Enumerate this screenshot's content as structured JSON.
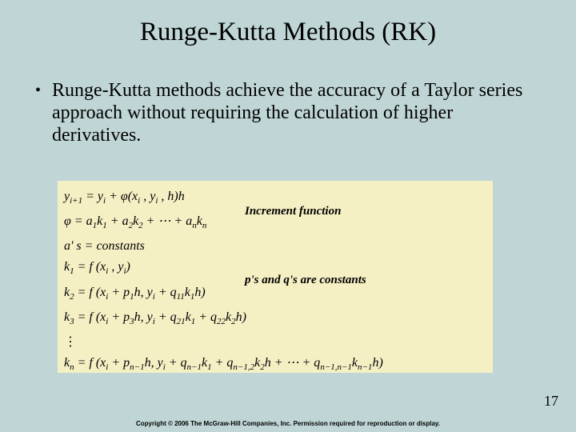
{
  "slide": {
    "background_color": "#c0d6d6",
    "title": "Runge-Kutta Methods (RK)",
    "bullet_text": "Runge-Kutta methods achieve the accuracy of a Taylor series approach without requiring the calculation of higher derivatives.",
    "page_number": "17",
    "copyright": "Copyright © 2006 The McGraw-Hill Companies, Inc. Permission required for reproduction or display."
  },
  "formula": {
    "background_color": "#f5f0c4",
    "annotation1": "Increment function",
    "annotation2": "p's and q's are constants",
    "equations": {
      "eq1_html": "y<sub>i+1</sub> = y<sub>i</sub> + φ(x<sub>i</sub> , y<sub>i</sub> , h)h",
      "eq2_html": "φ = a<sub>1</sub>k<sub>1</sub> + a<sub>2</sub>k<sub>2</sub> + ⋯ + a<sub>n</sub>k<sub>n</sub>",
      "eq3_html": "a' s = constants",
      "eq4_html": "k<sub>1</sub> = f (x<sub>i</sub> , y<sub>i</sub>)",
      "eq5_html": "k<sub>2</sub> = f (x<sub>i</sub> + p<sub>1</sub>h, y<sub>i</sub> + q<sub>11</sub>k<sub>1</sub>h)",
      "eq6_html": "k<sub>3</sub> = f (x<sub>i</sub> + p<sub>3</sub>h, y<sub>i</sub> + q<sub>21</sub>k<sub>1</sub> + q<sub>22</sub>k<sub>2</sub>h)",
      "eq7_html": "⋮",
      "eq8_html": "k<sub>n</sub> = f (x<sub>i</sub> + p<sub>n−1</sub>h, y<sub>i</sub> + q<sub>n−1</sub>k<sub>1</sub> + q<sub>n−1,2</sub>k<sub>2</sub>h + ⋯ + q<sub>n−1,n−1</sub>k<sub>n−1</sub>h)"
    }
  },
  "style": {
    "title_fontsize": 33,
    "body_fontsize": 24,
    "eq_fontsize": 16,
    "annot_fontsize": 15,
    "pagenum_fontsize": 18,
    "copyright_fontsize": 8,
    "text_color": "#000000"
  }
}
